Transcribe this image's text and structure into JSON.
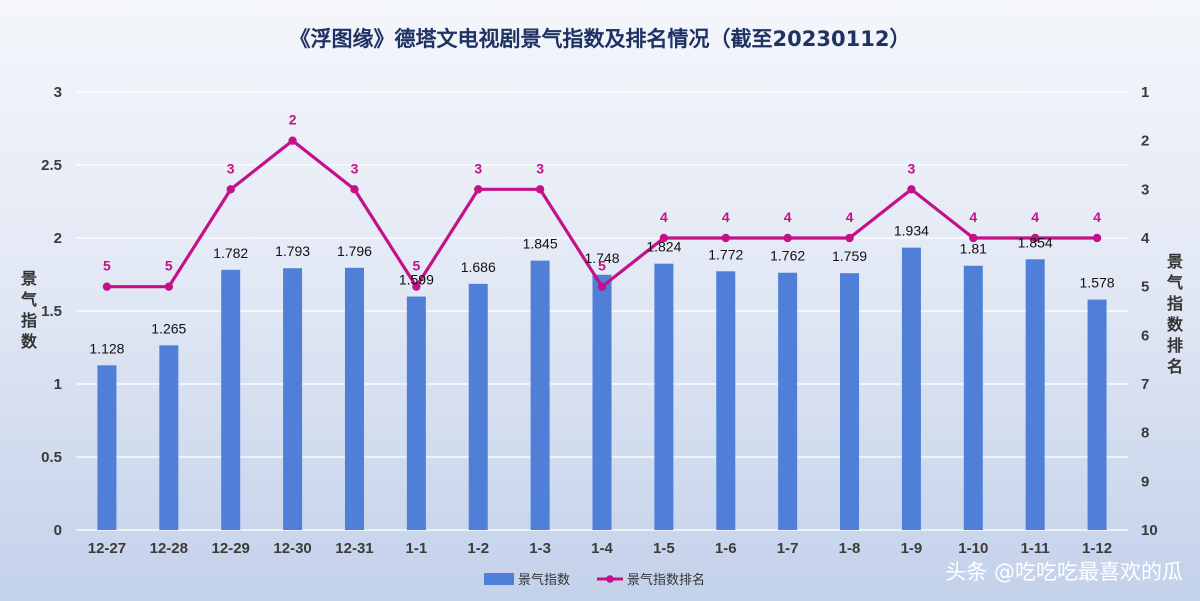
{
  "chart_data": {
    "type": "bar",
    "title": "《浮图缘》德塔文电视剧景气指数及排名情况（截至20230112）",
    "categories": [
      "12-27",
      "12-28",
      "12-29",
      "12-30",
      "12-31",
      "1-1",
      "1-2",
      "1-3",
      "1-4",
      "1-5",
      "1-6",
      "1-7",
      "1-8",
      "1-9",
      "1-10",
      "1-11",
      "1-12"
    ],
    "series": [
      {
        "name": "景气指数",
        "type": "bar",
        "axis": "left",
        "values": [
          1.128,
          1.265,
          1.782,
          1.793,
          1.796,
          1.599,
          1.686,
          1.845,
          1.748,
          1.824,
          1.772,
          1.762,
          1.759,
          1.934,
          1.81,
          1.854,
          1.578
        ],
        "labels": [
          "1.128",
          "1.265",
          "1.782",
          "1.793",
          "1.796",
          "1.599",
          "1.686",
          "1.845",
          "1.748",
          "1.824",
          "1.772",
          "1.762",
          "1.759",
          "1.934",
          "1.81",
          "1.854",
          "1.578"
        ]
      },
      {
        "name": "景气指数排名",
        "type": "line",
        "axis": "right",
        "values": [
          5,
          5,
          3,
          2,
          3,
          5,
          3,
          3,
          5,
          4,
          4,
          4,
          4,
          3,
          4,
          4,
          4
        ]
      }
    ],
    "ylabel": "景气指数",
    "ylim": [
      0,
      3
    ],
    "yticks": [
      "0",
      "0.5",
      "1",
      "1.5",
      "2",
      "2.5",
      "3"
    ],
    "y2label": "景气指数排名",
    "y2lim": [
      10,
      1
    ],
    "y2ticks": [
      "1",
      "2",
      "3",
      "4",
      "5",
      "6",
      "7",
      "8",
      "9",
      "10"
    ],
    "y2_reversed": true,
    "grid": true,
    "legend": "bottom-center"
  },
  "colors": {
    "bar": "#4f7fd6",
    "line": "#c4118a",
    "title": "#1f3264",
    "grid": "#ffffff"
  },
  "watermark": "头条 @吃吃吃最喜欢的瓜"
}
